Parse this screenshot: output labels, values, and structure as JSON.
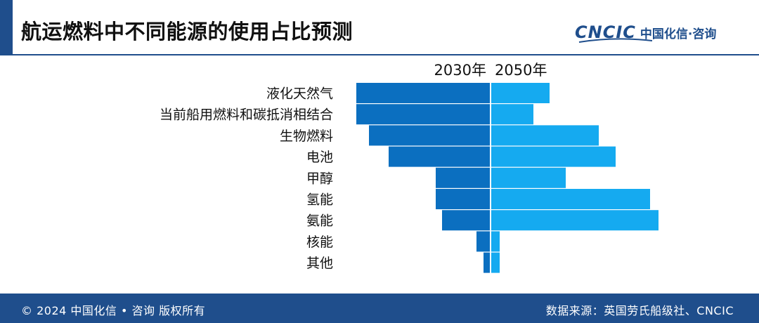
{
  "header": {
    "title": "航运燃料中不同能源的使用占比预测",
    "logo_text": "CNCIC",
    "logo_cn": "中国化信·咨询"
  },
  "footer": {
    "copyright": "© 2024 中国化信 • 咨询  版权所有",
    "source": "数据来源：英国劳氏船级社、CNCIC"
  },
  "colors": {
    "brand": "#1f4e8c",
    "series_2030": "#0b6fc0",
    "series_2050": "#15aaf0"
  },
  "chart_data": {
    "type": "bar",
    "orientation": "horizontal-back-to-back",
    "title": "航运燃料中不同能源的使用占比预测",
    "categories": [
      "液化天然气",
      "当前船用燃料和碳抵消相结合",
      "生物燃料",
      "电池",
      "甲醇",
      "氢能",
      "氨能",
      "核能",
      "其他"
    ],
    "series": [
      {
        "name": "2030年",
        "values": [
          19,
          19,
          17.2,
          14.4,
          7.7,
          7.7,
          6.8,
          1.9,
          0.9
        ]
      },
      {
        "name": "2050年",
        "values": [
          8.3,
          6,
          15.3,
          17.7,
          10.6,
          22.6,
          23.8,
          1.2,
          1.2
        ]
      }
    ],
    "legend_position": "top-center",
    "grid": false
  }
}
